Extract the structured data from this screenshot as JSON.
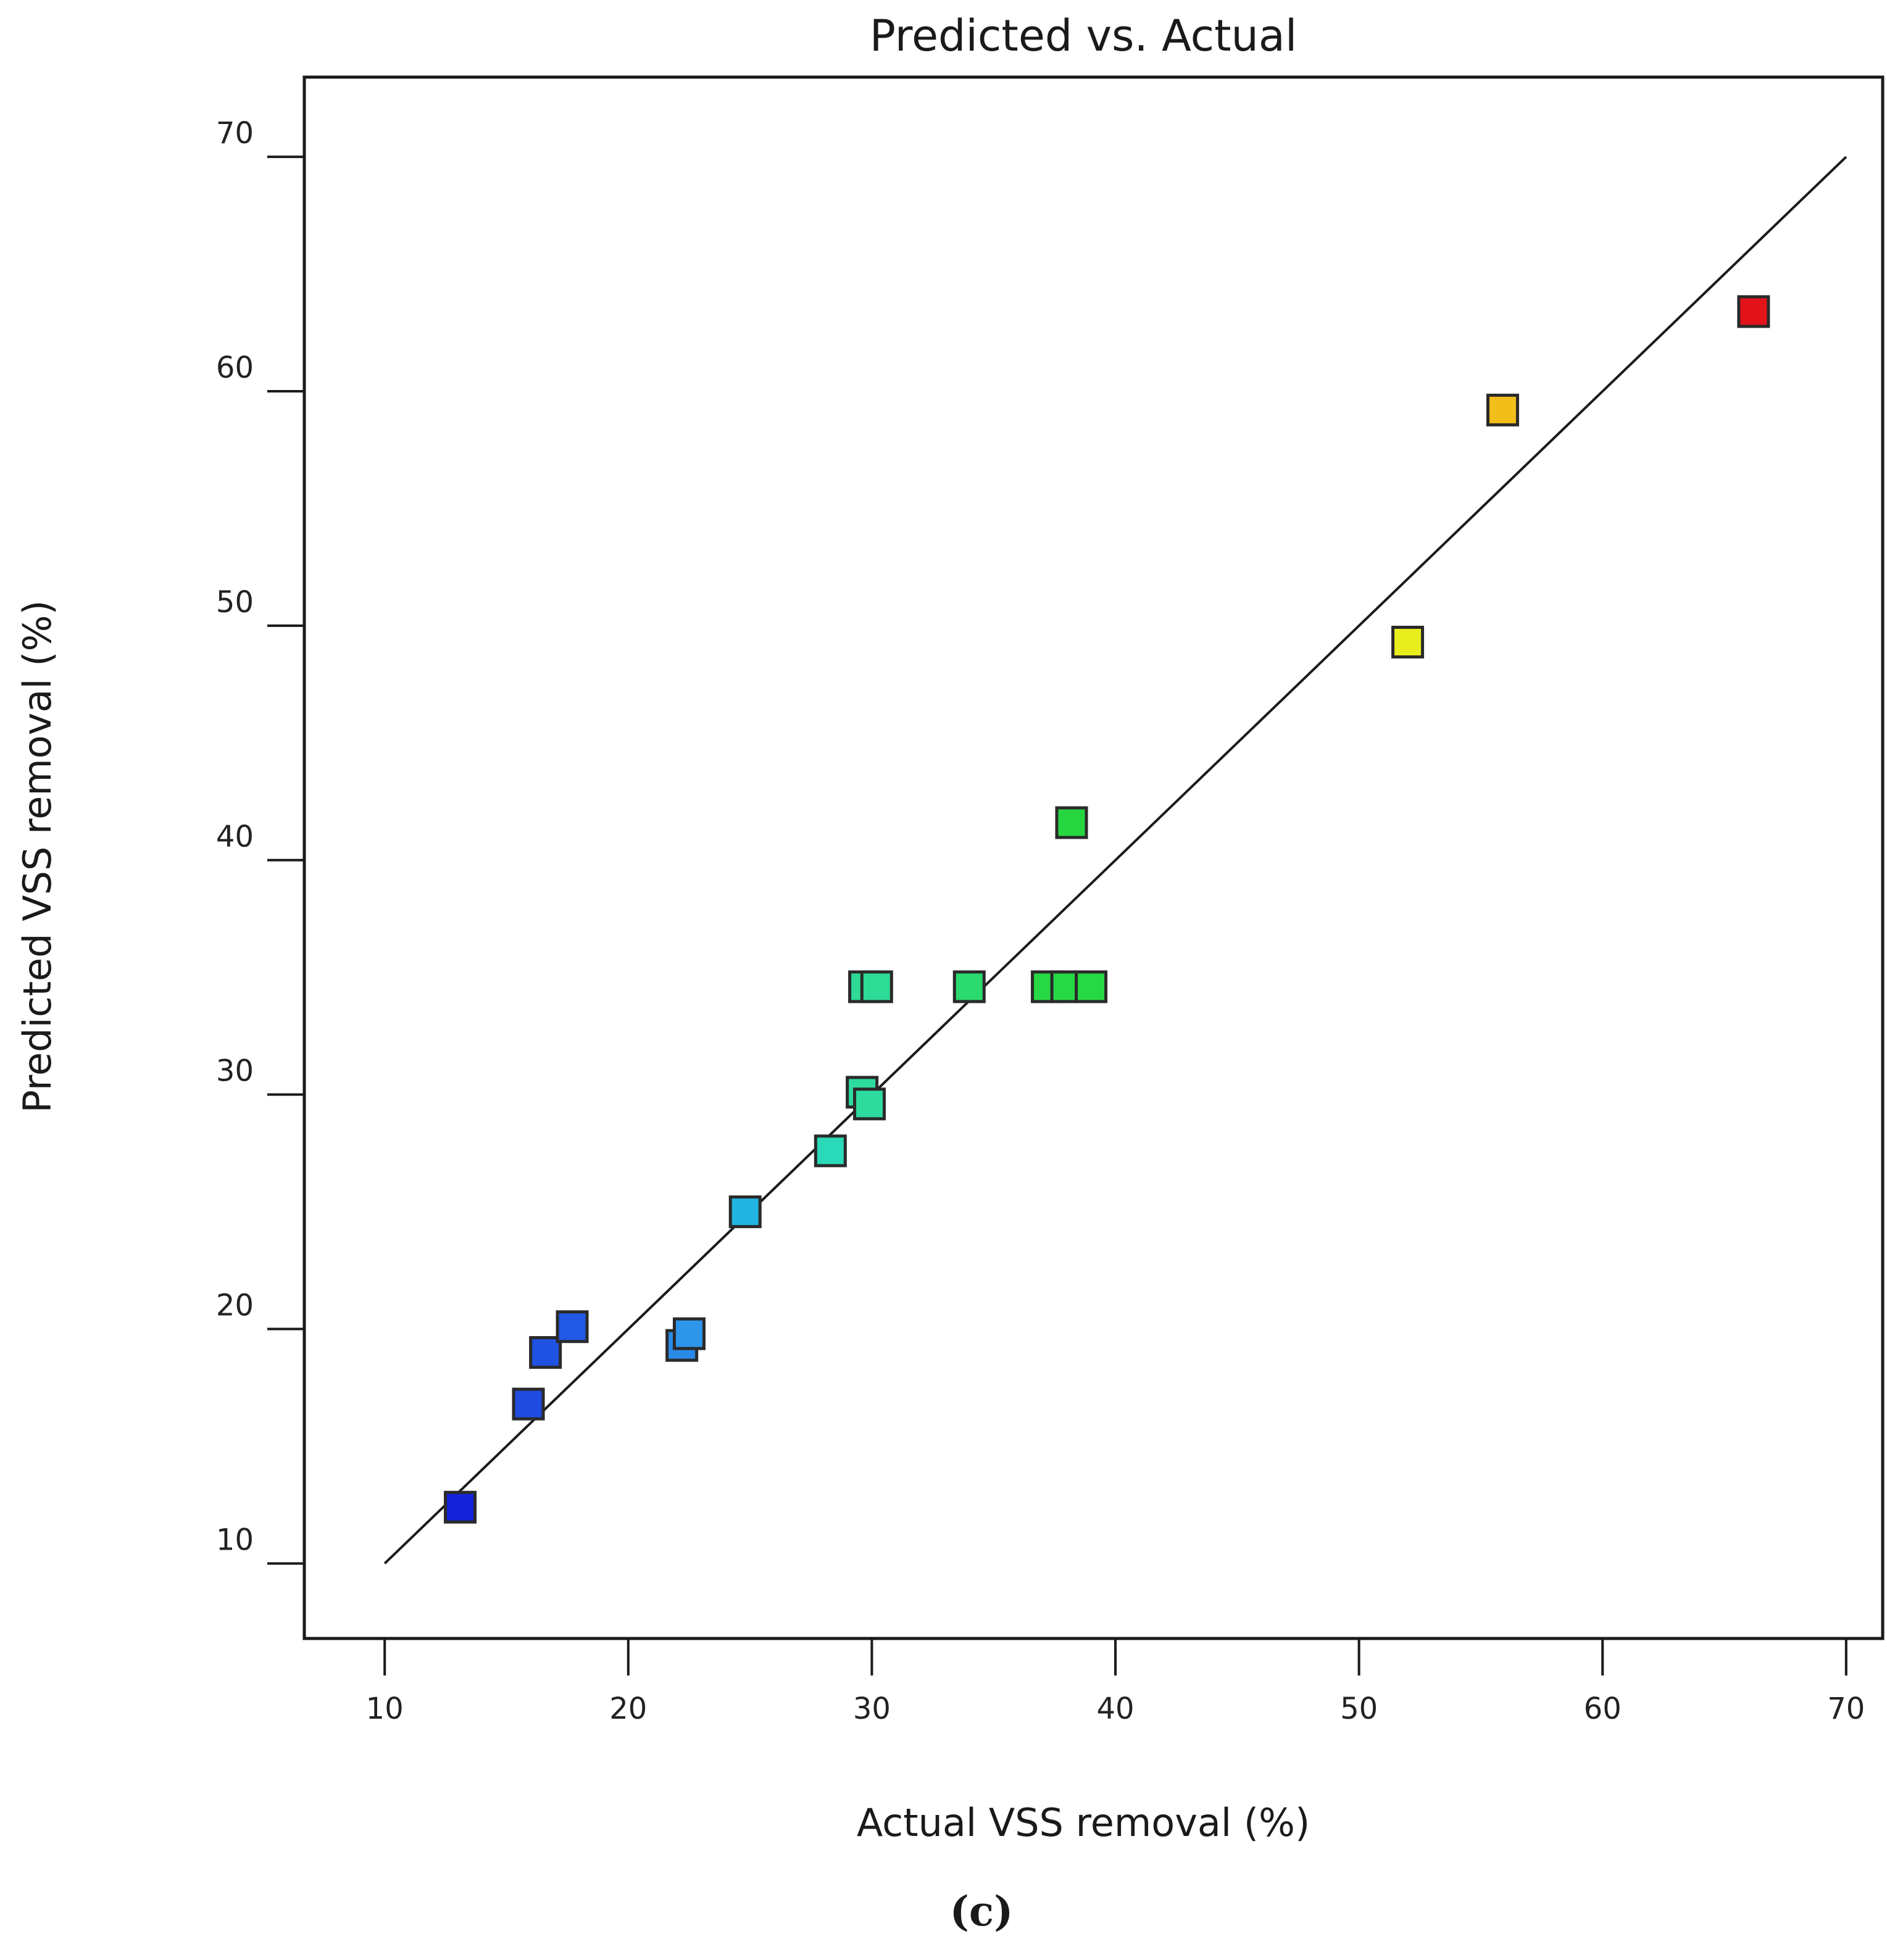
{
  "chart_data": {
    "type": "scatter",
    "title": "Predicted vs. Actual",
    "xlabel": "Actual VSS removal (%)",
    "ylabel": "Predicted VSS removal (%)",
    "panel_label": "(c)",
    "xlim": [
      6.7,
      71.5
    ],
    "ylim": [
      6.8,
      73.4
    ],
    "xticks": [
      10,
      20,
      30,
      40,
      50,
      60,
      70
    ],
    "yticks": [
      10,
      20,
      30,
      40,
      50,
      60,
      70
    ],
    "reference_line": {
      "x": [
        10,
        70
      ],
      "y": [
        10,
        70
      ],
      "color": "#1a1a1a"
    },
    "points": [
      {
        "x": 13.1,
        "y": 12.4,
        "color": "#1522d8"
      },
      {
        "x": 15.9,
        "y": 16.8,
        "color": "#1f4be0"
      },
      {
        "x": 16.6,
        "y": 19.0,
        "color": "#1f52e3"
      },
      {
        "x": 17.7,
        "y": 20.1,
        "color": "#2158e6"
      },
      {
        "x": 22.2,
        "y": 19.3,
        "color": "#2a8ae8"
      },
      {
        "x": 22.5,
        "y": 19.8,
        "color": "#2d95ea"
      },
      {
        "x": 24.8,
        "y": 25.0,
        "color": "#22b4e2"
      },
      {
        "x": 28.3,
        "y": 27.6,
        "color": "#29d9b8"
      },
      {
        "x": 29.6,
        "y": 30.1,
        "color": "#2ddb9e"
      },
      {
        "x": 29.9,
        "y": 29.6,
        "color": "#2ddb9e"
      },
      {
        "x": 29.7,
        "y": 34.6,
        "color": "#2ddb96"
      },
      {
        "x": 30.2,
        "y": 34.6,
        "color": "#2ddb96"
      },
      {
        "x": 34.0,
        "y": 34.6,
        "color": "#2bdb70"
      },
      {
        "x": 37.2,
        "y": 34.6,
        "color": "#26d844"
      },
      {
        "x": 38.0,
        "y": 34.6,
        "color": "#26d844"
      },
      {
        "x": 39.0,
        "y": 34.6,
        "color": "#26d844"
      },
      {
        "x": 38.2,
        "y": 41.6,
        "color": "#26d640"
      },
      {
        "x": 52.0,
        "y": 49.3,
        "color": "#e8ee1e"
      },
      {
        "x": 55.9,
        "y": 59.2,
        "color": "#f2be1a"
      },
      {
        "x": 66.2,
        "y": 63.4,
        "color": "#e2141a"
      }
    ]
  }
}
